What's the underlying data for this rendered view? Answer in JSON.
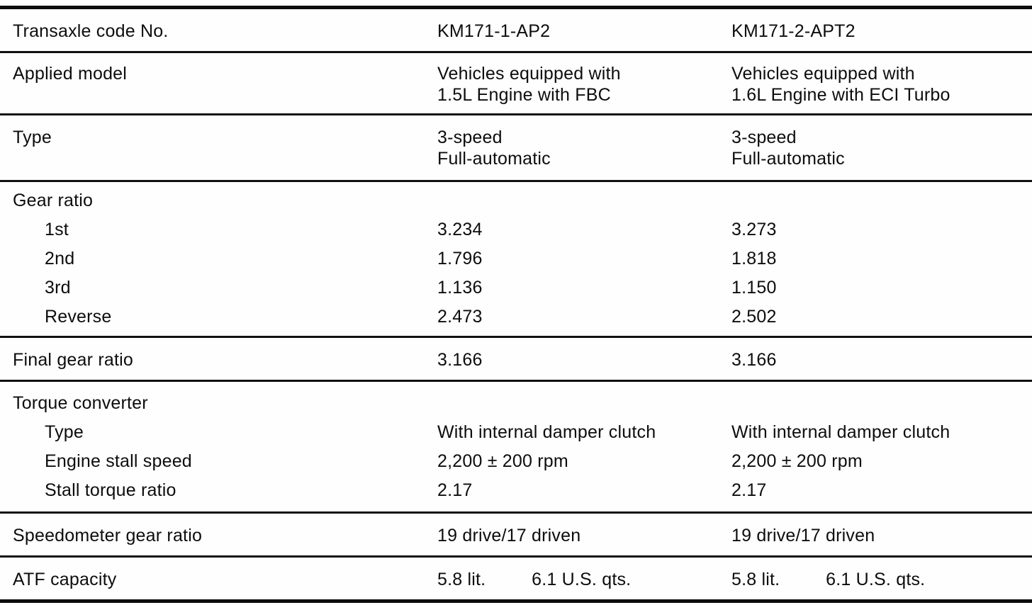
{
  "rows": {
    "transaxle_code": {
      "label": "Transaxle code No.",
      "v1": "KM171-1-AP2",
      "v2": "KM171-2-APT2"
    },
    "applied_model": {
      "label": "Applied model",
      "v1a": "Vehicles equipped with",
      "v1b": "1.5L Engine with FBC",
      "v2a": "Vehicles equipped with",
      "v2b": "1.6L Engine with ECI Turbo"
    },
    "type": {
      "label": "Type",
      "v1a": "3-speed",
      "v1b": "Full-automatic",
      "v2a": "3-speed",
      "v2b": "Full-automatic"
    },
    "gear_ratio": {
      "label": "Gear ratio",
      "first": {
        "label": "1st",
        "v1": "3.234",
        "v2": "3.273"
      },
      "second": {
        "label": "2nd",
        "v1": "1.796",
        "v2": "1.818"
      },
      "third": {
        "label": "3rd",
        "v1": "1.136",
        "v2": "1.150"
      },
      "reverse": {
        "label": "Reverse",
        "v1": "2.473",
        "v2": "2.502"
      }
    },
    "final_gear_ratio": {
      "label": "Final gear ratio",
      "v1": "3.166",
      "v2": "3.166"
    },
    "torque_converter": {
      "label": "Torque converter",
      "type": {
        "label": "Type",
        "v1": "With internal damper clutch",
        "v2": "With internal damper clutch"
      },
      "stall_speed": {
        "label": "Engine stall speed",
        "v1": "2,200 ± 200 rpm",
        "v2": "2,200 ± 200 rpm"
      },
      "stall_torque": {
        "label": "Stall torque ratio",
        "v1": "2.17",
        "v2": "2.17"
      }
    },
    "speedometer": {
      "label": "Speedometer gear ratio",
      "v1": "19 drive/17 driven",
      "v2": "19 drive/17 driven"
    },
    "atf": {
      "label": "ATF capacity",
      "v1_lit": "5.8 lit.",
      "v1_qts": "6.1 U.S. qts.",
      "v2_lit": "5.8 lit.",
      "v2_qts": "6.1 U.S. qts."
    }
  }
}
